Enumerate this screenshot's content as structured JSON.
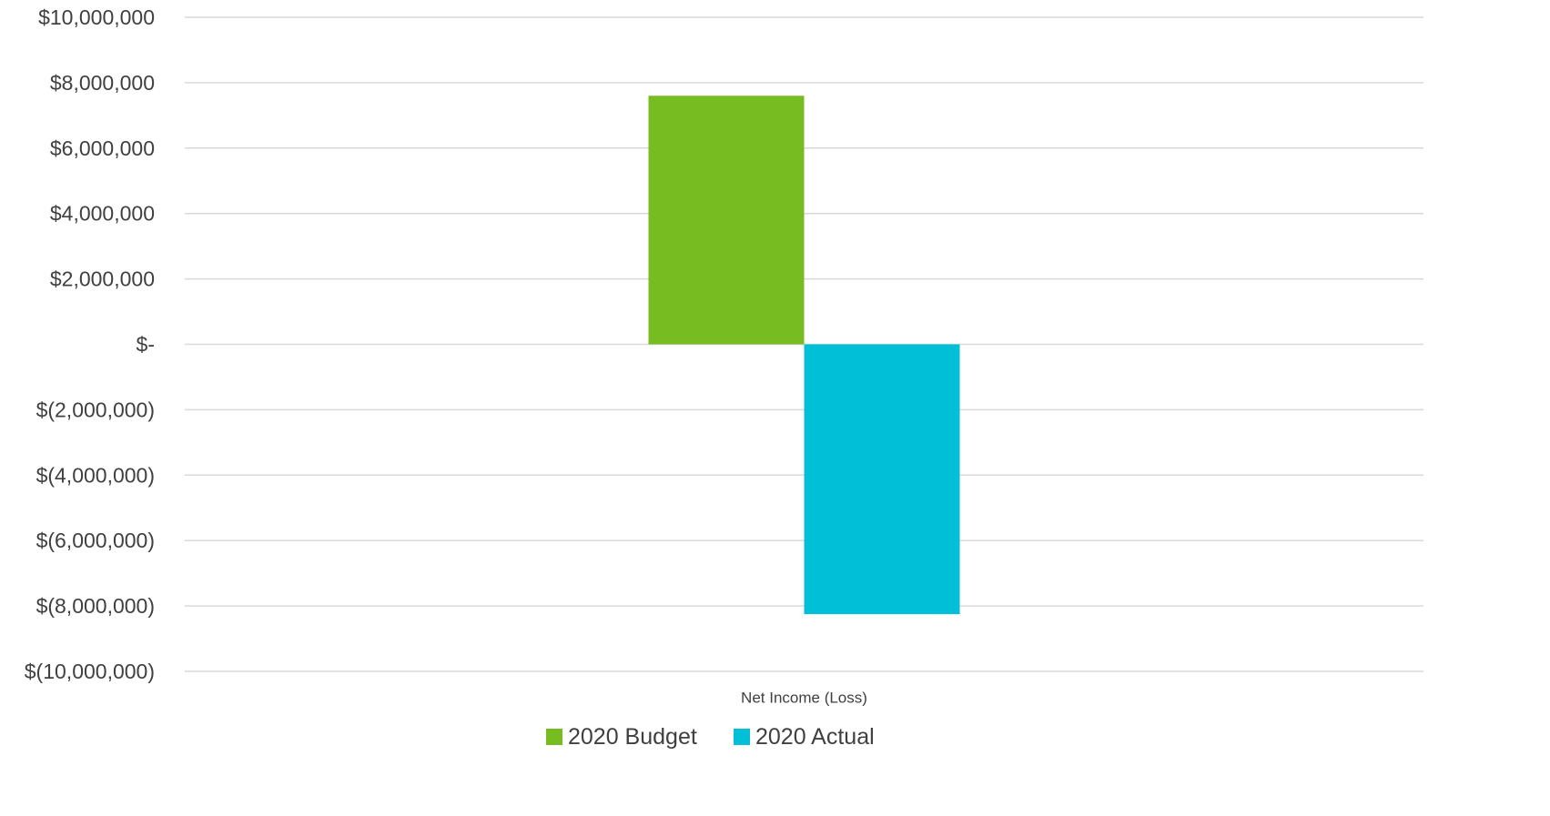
{
  "chart_data": {
    "type": "bar",
    "categories": [
      "Net Income (Loss)"
    ],
    "series": [
      {
        "name": "2020 Budget",
        "values": [
          7600000
        ],
        "color": "#77bc21"
      },
      {
        "name": "2020 Actual",
        "values": [
          -8250000
        ],
        "color": "#00bfd7"
      }
    ],
    "title": "",
    "xlabel": "",
    "ylabel": "",
    "ylim": [
      -10000000,
      10000000
    ],
    "yticks": [
      {
        "value": 10000000,
        "label": "$10,000,000"
      },
      {
        "value": 8000000,
        "label": "$8,000,000"
      },
      {
        "value": 6000000,
        "label": "$6,000,000"
      },
      {
        "value": 4000000,
        "label": "$4,000,000"
      },
      {
        "value": 2000000,
        "label": "$2,000,000"
      },
      {
        "value": 0,
        "label": "$-"
      },
      {
        "value": -2000000,
        "label": "$(2,000,000)"
      },
      {
        "value": -4000000,
        "label": "$(4,000,000)"
      },
      {
        "value": -6000000,
        "label": "$(6,000,000)"
      },
      {
        "value": -8000000,
        "label": "$(8,000,000)"
      },
      {
        "value": -10000000,
        "label": "$(10,000,000)"
      }
    ],
    "grid": true,
    "legend": "bottom",
    "colors": {
      "gridline": "#d9d9d9",
      "text": "#404040"
    }
  }
}
